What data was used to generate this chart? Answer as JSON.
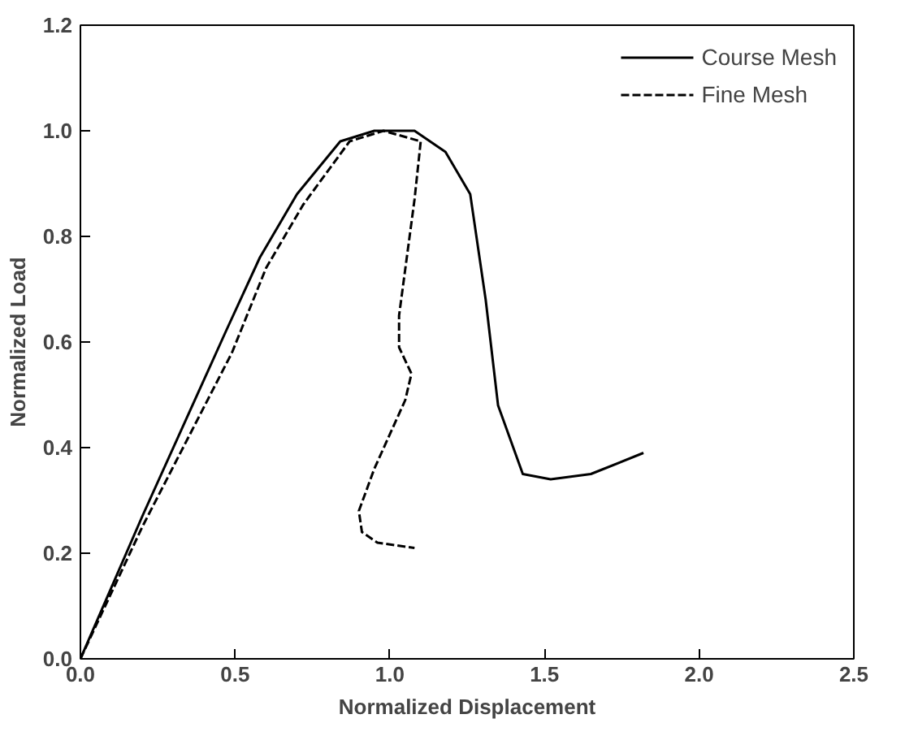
{
  "chart_data": {
    "type": "line",
    "xlabel": "Normalized Displacement",
    "ylabel": "Normalized Load",
    "xlim": [
      0,
      2.5
    ],
    "ylim": [
      0,
      1.2
    ],
    "xticks": [
      {
        "value": 0,
        "label": "0.0"
      },
      0.5,
      {
        "value": 1,
        "label": "1.0"
      },
      1.5,
      {
        "value": 2,
        "label": "2.0"
      },
      2.5
    ],
    "yticks": [
      {
        "value": 0,
        "label": "0.0"
      },
      0.2,
      0.4,
      0.6,
      0.8,
      {
        "value": 1,
        "label": "1.0"
      },
      1.2
    ],
    "grid": false,
    "legend": "top right",
    "series": [
      {
        "name": "Course Mesh",
        "color": "#000000",
        "line_style": "solid",
        "x": [
          0,
          0.2,
          0.47,
          0.58,
          0.7,
          0.84,
          0.95,
          1.08,
          1.18,
          1.26,
          1.31,
          1.35,
          1.43,
          1.52,
          1.65,
          1.82
        ],
        "values": [
          0,
          0.27,
          0.62,
          0.76,
          0.88,
          0.98,
          1.0,
          1.0,
          0.96,
          0.88,
          0.68,
          0.48,
          0.35,
          0.34,
          0.35,
          0.39
        ]
      },
      {
        "name": "Fine Mesh",
        "color": "#000000",
        "line_style": "dashed",
        "x": [
          0,
          0.2,
          0.49,
          0.6,
          0.72,
          0.87,
          0.98,
          1.1,
          1.08,
          1.03,
          1.03,
          1.07,
          1.05,
          0.95,
          0.9,
          0.91,
          0.96,
          1.08
        ],
        "values": [
          0,
          0.25,
          0.58,
          0.74,
          0.86,
          0.98,
          1.0,
          0.98,
          0.87,
          0.65,
          0.59,
          0.54,
          0.49,
          0.36,
          0.28,
          0.24,
          0.22,
          0.21
        ]
      }
    ]
  }
}
